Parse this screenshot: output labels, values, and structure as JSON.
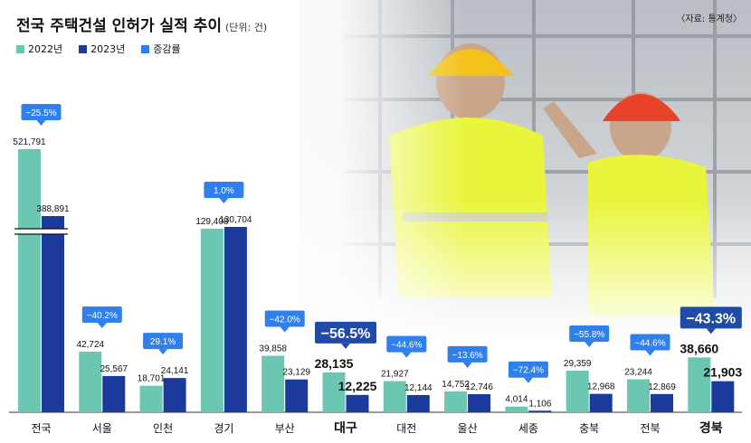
{
  "title": "전국 주택건설 인허가 실적 추이",
  "unit": "(단위: 건)",
  "source": "〈자료: 통계청〉",
  "colors": {
    "y2022": "#6cc7b2",
    "y2023": "#1b3a9c",
    "change": "#2f80ea",
    "highlight": "#1f4aa8"
  },
  "legend": [
    {
      "label": "2022년",
      "color": "#6cc7b2"
    },
    {
      "label": "2023년",
      "color": "#1b3a9c"
    },
    {
      "label": "증감률",
      "color": "#2f80ea"
    }
  ],
  "chart_data": {
    "type": "bar",
    "categories": [
      "전국",
      "서울",
      "인천",
      "경기",
      "부산",
      "대구",
      "대전",
      "울산",
      "세종",
      "충북",
      "전북",
      "경북"
    ],
    "series": [
      {
        "name": "2022년",
        "values": [
          521791,
          42724,
          18701,
          129408,
          39858,
          28135,
          21927,
          14752,
          4014,
          29359,
          23244,
          38660
        ]
      },
      {
        "name": "2023년",
        "values": [
          388891,
          25567,
          24141,
          130704,
          23129,
          12225,
          12144,
          12746,
          1106,
          12968,
          12869,
          21903
        ]
      }
    ],
    "change_labels": [
      "−25.5%",
      "−40.2%",
      "29.1%",
      "1.0%",
      "−42.0%",
      "−56.5%",
      "−44.6%",
      "−13.6%",
      "−72.4%",
      "−55.8%",
      "−44.6%",
      "−43.3%"
    ],
    "value_labels_2022": [
      "521,791",
      "42,724",
      "18,701",
      "129,408",
      "39,858",
      "28,135",
      "21,927",
      "14,752",
      "4,014",
      "29,359",
      "23,244",
      "38,660"
    ],
    "value_labels_2023": [
      "388,891",
      "25,567",
      "24,141",
      "130,704",
      "23,129",
      "12,225",
      "12,144",
      "12,746",
      "1,106",
      "12,968",
      "12,869",
      "21,903"
    ],
    "highlighted": [
      "대구",
      "경북"
    ],
    "broken_axis_category": "전국",
    "legend_position": "top-left",
    "grid": false
  }
}
